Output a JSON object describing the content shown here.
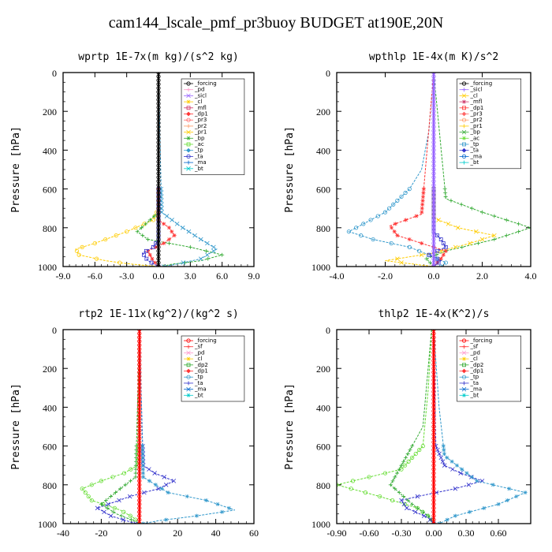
{
  "title": "cam144_lscale_pmf_pr3buoy  BUDGET at190E,20N",
  "chart_data": [
    {
      "type": "line",
      "title": "wprtp  1E-7x(m kg)/(s^2 kg)",
      "ylabel": "Pressure [hPa]",
      "xlim": [
        -9,
        9
      ],
      "ylim": [
        1000,
        0
      ],
      "xticks": [
        "-9.0",
        "-6.0",
        "-3.0",
        "0.0",
        "3.0",
        "6.0",
        "9.0"
      ],
      "yticks": [
        "0",
        "200",
        "400",
        "600",
        "800",
        "1000"
      ],
      "legend": [
        "_forcing",
        "_pd",
        "_sicl",
        "_cl",
        "_mfl",
        "_dp1",
        "_pr3",
        "_pr2",
        "_pr1",
        "_bp",
        "_ac",
        "_tp",
        "_ta",
        "_ma",
        "_bt"
      ],
      "series": [
        {
          "name": "_pr1",
          "color": "#ffcc00",
          "x": [
            0,
            0,
            -0.5,
            -3,
            -6,
            -7.8,
            -7.5,
            -5,
            -3,
            -1,
            0
          ],
          "y": [
            0,
            700,
            760,
            820,
            880,
            910,
            940,
            970,
            985,
            995,
            1000
          ]
        },
        {
          "name": "_bp",
          "color": "#33aa33",
          "x": [
            0,
            0,
            -1,
            -2,
            -1,
            3,
            6,
            4,
            1,
            0.5
          ],
          "y": [
            0,
            720,
            770,
            820,
            860,
            900,
            940,
            970,
            990,
            1000
          ]
        },
        {
          "name": "_tp",
          "color": "#3399cc",
          "x": [
            0,
            0.3,
            2,
            4,
            5.5,
            4,
            1.5,
            0.5
          ],
          "y": [
            0,
            720,
            790,
            860,
            910,
            960,
            990,
            1000
          ]
        },
        {
          "name": "_dp1",
          "color": "#ff3333",
          "x": [
            0,
            0,
            1,
            1.5,
            0.5,
            -1,
            -0.5,
            0
          ],
          "y": [
            0,
            760,
            800,
            840,
            880,
            920,
            970,
            1000
          ]
        },
        {
          "name": "_ta",
          "color": "#3333cc",
          "x": [
            0,
            0,
            -0.5,
            -1.5,
            -1,
            0
          ],
          "y": [
            0,
            860,
            900,
            930,
            970,
            1000
          ]
        },
        {
          "name": "_forcing",
          "color": "#000000",
          "x": [
            0,
            0
          ],
          "y": [
            0,
            1000
          ]
        }
      ]
    },
    {
      "type": "line",
      "title": "wpthlp  1E-4x(m K)/s^2",
      "ylabel": "Pressure [hPa]",
      "xlim": [
        -4,
        4
      ],
      "ylim": [
        1000,
        0
      ],
      "xticks": [
        "-4.0",
        "-2.0",
        "0.0",
        "2.0",
        "4.0"
      ],
      "yticks": [
        "0",
        "200",
        "400",
        "600",
        "800",
        "1000"
      ],
      "legend": [
        "_forcing",
        "_sicl",
        "_cl",
        "_mfl",
        "_dp1",
        "_pr3",
        "_pr2",
        "_pr1",
        "_bp",
        "_ac",
        "_tp",
        "_ta",
        "_ma",
        "_bt"
      ],
      "series": [
        {
          "name": "_tp",
          "color": "#3399cc",
          "x": [
            0,
            -0.2,
            -0.5,
            -1,
            -2,
            -3.5,
            -2.5,
            -1,
            0,
            0.5,
            0.3
          ],
          "y": [
            0,
            300,
            500,
            600,
            720,
            820,
            860,
            900,
            950,
            980,
            1000
          ]
        },
        {
          "name": "_bp",
          "color": "#33aa33",
          "x": [
            0,
            0.5,
            2,
            4,
            2.5,
            0.5,
            -0.3,
            0
          ],
          "y": [
            0,
            650,
            720,
            800,
            860,
            920,
            960,
            1000
          ]
        },
        {
          "name": "_pr1",
          "color": "#ffcc00",
          "x": [
            0,
            0,
            1,
            2.5,
            1.5,
            0,
            -2,
            0
          ],
          "y": [
            0,
            750,
            800,
            840,
            880,
            930,
            970,
            1000
          ]
        },
        {
          "name": "_dp1",
          "color": "#ff3333",
          "x": [
            0,
            -0.5,
            -1.8,
            -1.5,
            -0.5,
            0.5,
            0.3,
            0
          ],
          "y": [
            0,
            730,
            790,
            840,
            880,
            920,
            960,
            1000
          ]
        },
        {
          "name": "_ta",
          "color": "#3333cc",
          "x": [
            0,
            0,
            0.3,
            0.5,
            -0.2,
            0.3,
            0
          ],
          "y": [
            0,
            820,
            860,
            900,
            940,
            970,
            1000
          ]
        },
        {
          "name": "_sicl",
          "color": "#9966ff",
          "x": [
            0,
            0
          ],
          "y": [
            0,
            1000
          ]
        }
      ]
    },
    {
      "type": "line",
      "title": "rtp2  1E-11x(kg^2)/(kg^2 s)",
      "ylabel": "Pressure [hPa]",
      "xlim": [
        -40,
        60
      ],
      "ylim": [
        1000,
        0
      ],
      "xticks": [
        "-40",
        "-20",
        "0",
        "20",
        "40",
        "60"
      ],
      "yticks": [
        "0",
        "200",
        "400",
        "600",
        "800",
        "1000"
      ],
      "legend": [
        "_forcing",
        "_sf",
        "_pd",
        "_cl",
        "_dp2",
        "_dp1",
        "_tp",
        "_ta",
        "_ma",
        "_bt"
      ],
      "series": [
        {
          "name": "_dp1",
          "color": "#66dd33",
          "x": [
            0,
            -1,
            -8,
            -20,
            -30,
            -25,
            -10,
            -3,
            0
          ],
          "y": [
            0,
            700,
            740,
            780,
            820,
            880,
            930,
            970,
            1000
          ]
        },
        {
          "name": "_dp2",
          "color": "#33aa33",
          "x": [
            0,
            -2,
            -10,
            -20,
            -12,
            -3,
            0
          ],
          "y": [
            0,
            760,
            820,
            900,
            950,
            985,
            1000
          ]
        },
        {
          "name": "_ta",
          "color": "#3333cc",
          "x": [
            0,
            2,
            8,
            18,
            10,
            -5,
            -22,
            -15,
            -2
          ],
          "y": [
            0,
            700,
            740,
            780,
            820,
            860,
            920,
            960,
            1000
          ]
        },
        {
          "name": "_tp",
          "color": "#3399cc",
          "x": [
            0,
            2,
            15,
            35,
            50,
            30,
            10,
            2
          ],
          "y": [
            0,
            760,
            840,
            880,
            930,
            960,
            985,
            1000
          ]
        },
        {
          "name": "_forcing",
          "color": "#ff0000",
          "x": [
            0,
            0
          ],
          "y": [
            0,
            1000
          ]
        }
      ]
    },
    {
      "type": "line",
      "title": "thlp2  1E-4x(K^2)/s",
      "ylabel": "Pressure [hPa]",
      "xlim": [
        -0.9,
        0.9
      ],
      "ylim": [
        1000,
        0
      ],
      "xticks": [
        "-0.90",
        "-0.60",
        "-0.30",
        "0.00",
        "0.30",
        "0.60"
      ],
      "yticks": [
        "0",
        "200",
        "400",
        "600",
        "800",
        "1000"
      ],
      "legend": [
        "_forcing",
        "_sf",
        "_pd",
        "_cl",
        "_dp2",
        "_dp1",
        "_tp",
        "_ta",
        "_ma",
        "_bt"
      ],
      "series": [
        {
          "name": "_dp1",
          "color": "#66dd33",
          "x": [
            -0.02,
            -0.05,
            -0.1,
            -0.3,
            -0.6,
            -0.9,
            -0.5,
            -0.15,
            -0.03,
            0
          ],
          "y": [
            0,
            300,
            600,
            720,
            760,
            800,
            860,
            920,
            970,
            1000
          ]
        },
        {
          "name": "_dp2",
          "color": "#33aa33",
          "x": [
            -0.02,
            -0.1,
            -0.4,
            -0.2,
            -0.05,
            0
          ],
          "y": [
            0,
            500,
            800,
            900,
            960,
            1000
          ]
        },
        {
          "name": "_ta",
          "color": "#3333cc",
          "x": [
            0,
            0.02,
            0.1,
            0.25,
            0.45,
            0.2,
            -0.15,
            -0.3,
            -0.25,
            -0.05,
            0
          ],
          "y": [
            0,
            600,
            700,
            740,
            780,
            820,
            860,
            880,
            920,
            970,
            1000
          ]
        },
        {
          "name": "_tp",
          "color": "#3399cc",
          "x": [
            0,
            0.05,
            0.1,
            0.4,
            0.85,
            0.6,
            0.2,
            0.05
          ],
          "y": [
            0,
            400,
            650,
            780,
            840,
            900,
            960,
            1000
          ]
        },
        {
          "name": "_forcing",
          "color": "#ff0000",
          "x": [
            0,
            0
          ],
          "y": [
            0,
            1000
          ]
        }
      ]
    }
  ]
}
